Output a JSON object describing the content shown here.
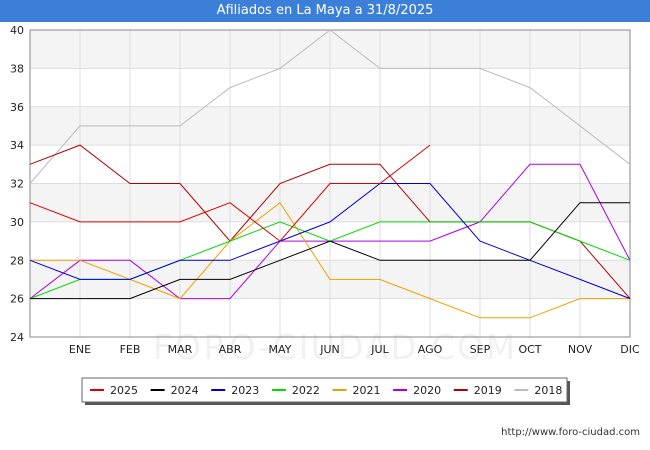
{
  "title": "Afiliados en La Maya a 31/8/2025",
  "watermark": "FORO-CIUDAD.COM",
  "source_url": "http://www.foro-ciudad.com",
  "chart_data": {
    "type": "line",
    "title": "Afiliados en La Maya a 31/8/2025",
    "xlabel": "",
    "ylabel": "",
    "categories": [
      "",
      "ENE",
      "FEB",
      "MAR",
      "ABR",
      "MAY",
      "JUN",
      "JUL",
      "AGO",
      "SEP",
      "OCT",
      "NOV",
      "DIC"
    ],
    "ylim": [
      24,
      40
    ],
    "yticks": [
      24,
      26,
      28,
      30,
      32,
      34,
      36,
      38,
      40
    ],
    "grid": true,
    "legend_position": "bottom",
    "series": [
      {
        "name": "2025",
        "color": "#dd0000",
        "values": [
          31,
          30,
          30,
          30,
          31,
          29,
          32,
          32,
          34,
          null,
          null,
          null,
          null
        ]
      },
      {
        "name": "2024",
        "color": "#000000",
        "values": [
          26,
          26,
          26,
          27,
          27,
          28,
          29,
          28,
          28,
          28,
          28,
          31,
          31
        ]
      },
      {
        "name": "2023",
        "color": "#0000dd",
        "values": [
          28,
          27,
          27,
          28,
          28,
          29,
          30,
          32,
          32,
          29,
          28,
          27,
          26
        ]
      },
      {
        "name": "2022",
        "color": "#00dd00",
        "values": [
          26,
          27,
          27,
          28,
          29,
          30,
          29,
          30,
          30,
          30,
          30,
          29,
          28
        ]
      },
      {
        "name": "2021",
        "color": "#eea000",
        "values": [
          28,
          28,
          27,
          26,
          29,
          31,
          27,
          27,
          26,
          25,
          25,
          26,
          26
        ]
      },
      {
        "name": "2020",
        "color": "#aa00ee",
        "values": [
          26,
          28,
          28,
          26,
          26,
          29,
          29,
          29,
          29,
          30,
          33,
          33,
          28
        ]
      },
      {
        "name": "2019",
        "color": "#b00000",
        "values": [
          33,
          34,
          32,
          32,
          29,
          32,
          33,
          33,
          30,
          30,
          30,
          29,
          26
        ]
      },
      {
        "name": "2018",
        "color": "#bbbbbb",
        "values": [
          32,
          35,
          35,
          35,
          37,
          38,
          40,
          38,
          38,
          38,
          37,
          35,
          33
        ]
      }
    ]
  }
}
